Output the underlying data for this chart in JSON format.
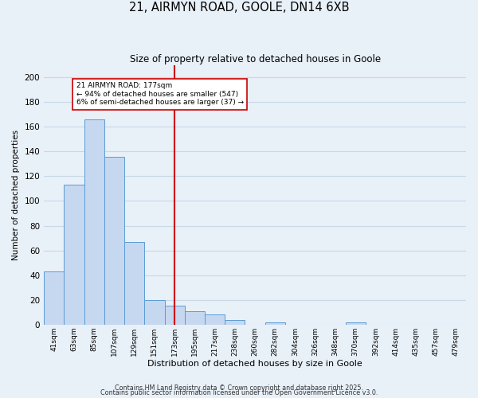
{
  "title": "21, AIRMYN ROAD, GOOLE, DN14 6XB",
  "subtitle": "Size of property relative to detached houses in Goole",
  "xlabel": "Distribution of detached houses by size in Goole",
  "ylabel": "Number of detached properties",
  "bar_labels": [
    "41sqm",
    "63sqm",
    "85sqm",
    "107sqm",
    "129sqm",
    "151sqm",
    "173sqm",
    "195sqm",
    "217sqm",
    "238sqm",
    "260sqm",
    "282sqm",
    "304sqm",
    "326sqm",
    "348sqm",
    "370sqm",
    "392sqm",
    "414sqm",
    "435sqm",
    "457sqm",
    "479sqm"
  ],
  "bar_values": [
    43,
    113,
    166,
    136,
    67,
    20,
    15,
    11,
    8,
    4,
    0,
    2,
    0,
    0,
    0,
    2,
    0,
    0,
    0,
    0,
    0
  ],
  "bar_color": "#c5d8f0",
  "bar_edge_color": "#5b9bd5",
  "vline_x": 6,
  "vline_color": "#cc0000",
  "annotation_line1": "21 AIRMYN ROAD: 177sqm",
  "annotation_line2": "← 94% of detached houses are smaller (547)",
  "annotation_line3": "6% of semi-detached houses are larger (37) →",
  "annotation_box_color": "#ffffff",
  "annotation_box_edge_color": "#cc0000",
  "ylim": [
    0,
    210
  ],
  "yticks": [
    0,
    20,
    40,
    60,
    80,
    100,
    120,
    140,
    160,
    180,
    200
  ],
  "grid_color": "#c8d8e8",
  "bg_color": "#e8f0f8",
  "footer1": "Contains HM Land Registry data © Crown copyright and database right 2025.",
  "footer2": "Contains public sector information licensed under the Open Government Licence v3.0."
}
